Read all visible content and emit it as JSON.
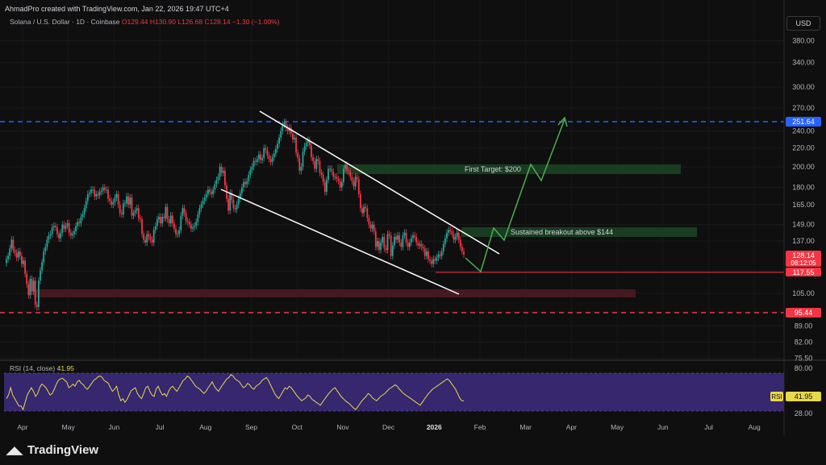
{
  "header": {
    "attribution": "AhmadPro created with TradingView.com, Jan 22, 2026 19:47 UTC+4",
    "symbol": "Solana / U.S. Dollar · 1D · Coinbase",
    "ohlc": "O129.44 H130.90 L126.68 C128.14 −1.30 (−1.00%)"
  },
  "currency": "USD",
  "branding": {
    "name": "TradingView"
  },
  "rsi": {
    "label": "RSI (14, close)",
    "value": "41.95",
    "badge": "RSI",
    "upper": "80.00",
    "lower": "28.00"
  },
  "price_labels": {
    "current": "128.14",
    "countdown": "08:12:05",
    "support": "117.55",
    "top_line": "251.64",
    "bottom_line": "95.44"
  },
  "annotations": {
    "target": "First Target: $200",
    "breakout": "Sustained breakout above $144"
  },
  "colors": {
    "background": "#0f0f0f",
    "up": "#26a69a",
    "down": "#f23645",
    "blue_line": "#2962ff",
    "red_line": "#f23645",
    "projection": "#4caf50",
    "channel": "#ffffff",
    "rsi_band": "#3b2a7a",
    "rsi_line": "#e8d84a"
  },
  "chart_data": {
    "type": "candlestick",
    "title": "Solana / U.S. Dollar · 1D · Coinbase",
    "x_ticks": [
      "Apr",
      "May",
      "Jun",
      "Jul",
      "Aug",
      "Sep",
      "Oct",
      "Nov",
      "Dec",
      "2026",
      "Feb",
      "Mar",
      "Apr",
      "May",
      "Jun",
      "Jul",
      "Aug"
    ],
    "y_ticks": [
      380,
      340,
      300,
      270,
      240,
      220,
      200,
      180,
      165,
      149,
      137,
      117.55,
      105,
      95.44,
      89,
      82,
      75.5
    ],
    "y_tick_labels": [
      "380.00",
      "340.00",
      "300.00",
      "270.00",
      "240.00",
      "220.00",
      "200.00",
      "180.00",
      "165.00",
      "149.00",
      "137.00",
      "117.55",
      "105.00",
      "95.44",
      "89.00",
      "82.00",
      "75.50"
    ],
    "scale": "log",
    "ylim": [
      75.5,
      420
    ],
    "closes": [
      125,
      127,
      132,
      138,
      131,
      129,
      126,
      130,
      127,
      122,
      124,
      116,
      110,
      104,
      113,
      106,
      112,
      99,
      98,
      112,
      118,
      123,
      130,
      133,
      138,
      141,
      142,
      147,
      148,
      147,
      142,
      139,
      143,
      149,
      146,
      148,
      150,
      143,
      141,
      142,
      144,
      148,
      151,
      150,
      155,
      157,
      162,
      168,
      174,
      175,
      178,
      178,
      172,
      174,
      173,
      176,
      177,
      180,
      178,
      178,
      170,
      168,
      165,
      167,
      171,
      174,
      165,
      158,
      157,
      166,
      166,
      172,
      165,
      171,
      156,
      158,
      160,
      162,
      154,
      153,
      142,
      138,
      136,
      142,
      140,
      138,
      136,
      145,
      148,
      153,
      155,
      150,
      155,
      154,
      163,
      153,
      150,
      156,
      150,
      146,
      142,
      142,
      145,
      156,
      162,
      158,
      152,
      151,
      149,
      146,
      147,
      148,
      151,
      157,
      162,
      165,
      168,
      171,
      174,
      178,
      176,
      174,
      178,
      183,
      187,
      190,
      200,
      194,
      196,
      182,
      170,
      160,
      175,
      169,
      162,
      161,
      165,
      170,
      175,
      180,
      185,
      183,
      186,
      192,
      197,
      200,
      206,
      205,
      208,
      213,
      207,
      209,
      220,
      218,
      212,
      208,
      205,
      210,
      214,
      219,
      225,
      232,
      240,
      248,
      251,
      244,
      240,
      244,
      237,
      230,
      232,
      215,
      209,
      196,
      200,
      216,
      222,
      226,
      229,
      223,
      210,
      206,
      198,
      208,
      206,
      194,
      192,
      185,
      176,
      187,
      198,
      198,
      195,
      190,
      190,
      188,
      186,
      180,
      185,
      198,
      202,
      196,
      195,
      190,
      186,
      181,
      190,
      188,
      174,
      162,
      158,
      163,
      162,
      154,
      149,
      146,
      149,
      144,
      133,
      137,
      131,
      136,
      140,
      132,
      131,
      142,
      141,
      127,
      134,
      140,
      138,
      141,
      136,
      133,
      141,
      143,
      136,
      133,
      136,
      139,
      141,
      140,
      136,
      134,
      135,
      133,
      132,
      127,
      130,
      125,
      124,
      122,
      125,
      124,
      126,
      128,
      127,
      130,
      135,
      139,
      143,
      145,
      144,
      142,
      138,
      140,
      143,
      138,
      133,
      130,
      128
    ],
    "rsi_values": [
      45,
      50,
      60,
      50,
      45,
      40,
      35,
      35,
      30,
      40,
      50,
      55,
      60,
      55,
      48,
      52,
      60,
      65,
      63,
      60,
      55,
      50,
      52,
      58,
      65,
      70,
      72,
      73,
      70,
      68,
      60,
      62,
      65,
      62,
      68,
      70,
      66,
      64,
      60,
      58,
      62,
      66,
      70,
      72,
      75,
      76,
      74,
      70,
      68,
      66,
      60,
      55,
      58,
      62,
      50,
      42,
      45,
      40,
      44,
      50,
      56,
      58,
      60,
      52,
      48,
      45,
      52,
      60,
      62,
      55,
      50,
      48,
      58,
      62,
      55,
      50,
      52,
      48,
      55,
      60,
      62,
      58,
      55,
      60,
      65,
      70,
      72,
      76,
      74,
      70,
      66,
      62,
      60,
      58,
      55,
      52,
      55,
      60,
      64,
      68,
      62,
      58,
      55,
      60,
      64,
      68,
      72,
      74,
      78,
      76,
      72,
      70,
      68,
      64,
      60,
      62,
      66,
      64,
      60,
      58,
      62,
      64,
      66,
      70,
      72,
      74,
      70,
      64,
      58,
      52,
      48,
      45,
      50,
      55,
      60,
      58,
      62,
      60,
      56,
      52,
      48,
      45,
      42,
      44,
      46,
      50,
      48,
      44,
      42,
      40,
      38,
      36,
      40,
      44,
      48,
      52,
      55,
      58,
      60,
      56,
      52,
      48,
      45,
      42,
      40,
      38,
      35,
      32,
      30,
      34,
      38,
      42,
      45,
      48,
      52,
      50,
      46,
      44,
      42,
      45,
      48,
      50,
      52,
      55,
      58,
      60,
      62,
      64,
      62,
      58,
      55,
      52,
      50,
      48,
      46,
      44,
      42,
      40,
      38,
      36,
      40,
      44,
      48,
      52,
      55,
      58,
      60,
      62,
      64,
      66,
      68,
      70,
      72,
      70,
      66,
      62,
      58,
      52,
      46,
      42,
      41.95
    ]
  }
}
